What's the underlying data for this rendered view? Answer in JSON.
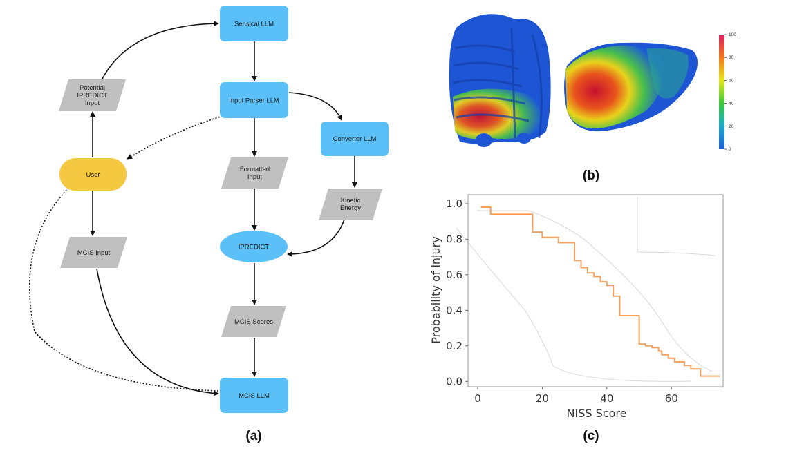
{
  "flowchart": {
    "nodes": {
      "sensical": "Sensical LLM",
      "potential": [
        "Potential",
        "IPREDICT",
        "Input"
      ],
      "input_parser": "Input Parser LLM",
      "converter": "Converter LLM",
      "user": "User",
      "formatted": [
        "Formatted",
        "Input"
      ],
      "kinetic": [
        "Kinetic",
        "Energy"
      ],
      "ipredict": "IPREDICT",
      "mcis_input": "MCIS Input",
      "mcis_scores": "MCIS Scores",
      "mcis_llm": "MCIS LLM"
    },
    "label": "(a)",
    "colors": {
      "llm": "#5bc0f8",
      "user": "#f5c842",
      "data": "#c0c0c0"
    }
  },
  "heatmap": {
    "label": "(b)",
    "colorbar_ticks": [
      "100",
      "80",
      "60",
      "40",
      "20",
      "0"
    ]
  },
  "chart_data": {
    "type": "line",
    "label": "(c)",
    "xlabel": "NISS Score",
    "ylabel": "Probability of injury",
    "xlim": [
      -3,
      76
    ],
    "ylim": [
      -0.03,
      1.05
    ],
    "xticks": [
      0,
      20,
      40,
      60
    ],
    "yticks": [
      0.0,
      0.2,
      0.4,
      0.6,
      0.8,
      1.0
    ],
    "series": [
      {
        "color": "#f4a15d",
        "x": [
          1,
          4,
          4,
          17,
          17,
          20,
          20,
          22,
          22,
          25,
          25,
          30,
          30,
          32,
          32,
          34,
          34,
          36,
          36,
          38,
          38,
          40,
          40,
          42,
          42,
          44,
          44,
          50,
          50,
          52,
          52,
          54,
          54,
          56,
          56,
          57,
          57,
          59,
          59,
          61,
          61,
          64,
          64,
          66,
          66,
          69,
          69,
          72,
          72,
          75
        ],
        "y": [
          0.98,
          0.98,
          0.94,
          0.94,
          0.84,
          0.84,
          0.81,
          0.81,
          0.81,
          0.81,
          0.78,
          0.78,
          0.68,
          0.68,
          0.64,
          0.64,
          0.61,
          0.61,
          0.59,
          0.59,
          0.56,
          0.56,
          0.54,
          0.54,
          0.48,
          0.48,
          0.37,
          0.37,
          0.21,
          0.21,
          0.2,
          0.2,
          0.19,
          0.19,
          0.17,
          0.17,
          0.15,
          0.15,
          0.13,
          0.13,
          0.11,
          0.11,
          0.09,
          0.09,
          0.07,
          0.07,
          0.03,
          0.03,
          0.03,
          0.03
        ]
      }
    ]
  }
}
